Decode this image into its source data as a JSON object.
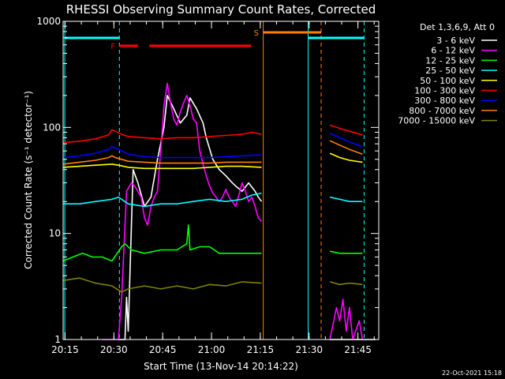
{
  "chart_data": {
    "type": "line",
    "title": "RHESSI Observing Summary Count Rates, Corrected",
    "xlabel": "Start Time (13-Nov-14 20:14:22)",
    "ylabel": "Corrected Count Rate (s⁻¹ detector⁻¹)",
    "x_unit": "minutes since 20:14:22",
    "xlim": [
      0,
      97
    ],
    "ylim": [
      1,
      1000
    ],
    "yscale": "log",
    "x_ticks": [
      {
        "m": 0.6,
        "label": "20:15"
      },
      {
        "m": 15.6,
        "label": "20:30"
      },
      {
        "m": 30.6,
        "label": "20:45"
      },
      {
        "m": 45.6,
        "label": "21:00"
      },
      {
        "m": 60.6,
        "label": "21:15"
      },
      {
        "m": 75.6,
        "label": "21:30"
      },
      {
        "m": 90.6,
        "label": "21:45"
      }
    ],
    "y_ticks": [
      {
        "v": 1,
        "label": "1"
      },
      {
        "v": 10,
        "label": "10"
      },
      {
        "v": 100,
        "label": "100"
      },
      {
        "v": 1000,
        "label": "1000"
      }
    ],
    "legend_header": "Det 1,3,6,9, Att 0",
    "legend_position": "right",
    "footer_date": "22-Oct-2021 15:18",
    "series": [
      {
        "name": "3 - 6 keV",
        "color": "#ffffff",
        "segments": [
          [
            [
              17,
              1.0
            ],
            [
              19,
              1.0
            ],
            [
              19.5,
              2.5
            ],
            [
              20,
              1.2
            ],
            [
              21.5,
              40
            ],
            [
              23,
              30
            ],
            [
              25,
              18
            ],
            [
              27,
              22
            ],
            [
              29,
              50
            ],
            [
              31,
              100
            ],
            [
              32,
              200
            ],
            [
              34,
              150
            ],
            [
              36,
              110
            ],
            [
              38,
              130
            ],
            [
              39,
              190
            ],
            [
              41,
              150
            ],
            [
              43,
              110
            ],
            [
              44,
              80
            ],
            [
              46,
              50
            ],
            [
              48,
              40
            ],
            [
              50,
              35
            ],
            [
              52,
              30
            ],
            [
              53,
              28
            ],
            [
              55,
              25
            ],
            [
              57,
              30
            ],
            [
              59,
              25
            ],
            [
              60,
              22
            ],
            [
              61,
              20
            ]
          ],
          [
            [
              82,
              1.0
            ],
            [
              96,
              1.0
            ]
          ]
        ]
      },
      {
        "name": "6 - 12 keV",
        "color": "#ff00ff",
        "segments": [
          [
            [
              12,
              1.0
            ],
            [
              17,
              1.0
            ],
            [
              18,
              2.5
            ],
            [
              19.5,
              25
            ],
            [
              21,
              30
            ],
            [
              22,
              28
            ],
            [
              24,
              22
            ],
            [
              25,
              14
            ],
            [
              26,
              12
            ],
            [
              27,
              18
            ],
            [
              28,
              22
            ],
            [
              29,
              25
            ],
            [
              30,
              60
            ],
            [
              31,
              160
            ],
            [
              32,
              260
            ],
            [
              33,
              170
            ],
            [
              34,
              120
            ],
            [
              35,
              105
            ],
            [
              36,
              140
            ],
            [
              37,
              170
            ],
            [
              38,
              200
            ],
            [
              39,
              160
            ],
            [
              40,
              120
            ],
            [
              41,
              110
            ],
            [
              42,
              60
            ],
            [
              43,
              45
            ],
            [
              44,
              35
            ],
            [
              45,
              28
            ],
            [
              46,
              24
            ],
            [
              47,
              22
            ],
            [
              48,
              20
            ],
            [
              49,
              22
            ],
            [
              50,
              26
            ],
            [
              51,
              22
            ],
            [
              52,
              20
            ],
            [
              53,
              18
            ],
            [
              54,
              23
            ],
            [
              55,
              30
            ],
            [
              56,
              25
            ],
            [
              57,
              20
            ],
            [
              58,
              22
            ],
            [
              59,
              18
            ],
            [
              60,
              14
            ],
            [
              61,
              13
            ]
          ],
          [
            [
              82,
              1.0
            ],
            [
              84,
              2.0
            ],
            [
              85,
              1.5
            ],
            [
              86,
              2.4
            ],
            [
              87,
              1.2
            ],
            [
              88,
              2.0
            ],
            [
              89,
              1.0
            ],
            [
              91,
              1.5
            ],
            [
              92,
              1.0
            ]
          ]
        ]
      },
      {
        "name": "12 - 25 keV",
        "color": "#00ff00",
        "segments": [
          [
            [
              0,
              5.5
            ],
            [
              3,
              6
            ],
            [
              6,
              6.5
            ],
            [
              9,
              6
            ],
            [
              12,
              6
            ],
            [
              15,
              5.5
            ],
            [
              18,
              7.5
            ],
            [
              19,
              8
            ],
            [
              21,
              7
            ],
            [
              25,
              6.5
            ],
            [
              30,
              7
            ],
            [
              35,
              7
            ],
            [
              38,
              8
            ],
            [
              38.5,
              12
            ],
            [
              39,
              7
            ],
            [
              42,
              7.5
            ],
            [
              45,
              7.5
            ],
            [
              48,
              6.5
            ],
            [
              51,
              6.5
            ],
            [
              54,
              6.5
            ],
            [
              57,
              6.5
            ],
            [
              61,
              6.5
            ]
          ],
          [
            [
              82,
              6.8
            ],
            [
              85,
              6.5
            ],
            [
              88,
              6.5
            ],
            [
              92,
              6.5
            ]
          ]
        ]
      },
      {
        "name": "25 - 50 keV",
        "color": "#00ffff",
        "segments": [
          [
            [
              0,
              19
            ],
            [
              5,
              19
            ],
            [
              10,
              20
            ],
            [
              15,
              21
            ],
            [
              17,
              22
            ],
            [
              20,
              19
            ],
            [
              25,
              18
            ],
            [
              30,
              19
            ],
            [
              35,
              19
            ],
            [
              40,
              20
            ],
            [
              45,
              21
            ],
            [
              50,
              20
            ],
            [
              55,
              21
            ],
            [
              58,
              23
            ],
            [
              61,
              24
            ]
          ],
          [
            [
              82,
              22
            ],
            [
              85,
              21
            ],
            [
              88,
              20
            ],
            [
              92,
              20
            ]
          ]
        ]
      },
      {
        "name": "50 - 100 keV",
        "color": "#ffff00",
        "segments": [
          [
            [
              0,
              42
            ],
            [
              5,
              43
            ],
            [
              10,
              44
            ],
            [
              15,
              45
            ],
            [
              17,
              44
            ],
            [
              20,
              42
            ],
            [
              25,
              41
            ],
            [
              30,
              41
            ],
            [
              35,
              41
            ],
            [
              40,
              41
            ],
            [
              45,
              42
            ],
            [
              50,
              43
            ],
            [
              55,
              43
            ],
            [
              61,
              42
            ]
          ],
          [
            [
              82,
              57
            ],
            [
              85,
              52
            ],
            [
              88,
              49
            ],
            [
              92,
              47
            ]
          ]
        ]
      },
      {
        "name": "100 - 300 keV",
        "color": "#ff0000",
        "segments": [
          [
            [
              0,
              72
            ],
            [
              5,
              74
            ],
            [
              10,
              78
            ],
            [
              14,
              85
            ],
            [
              15,
              95
            ],
            [
              16,
              92
            ],
            [
              18,
              86
            ],
            [
              20,
              82
            ],
            [
              25,
              80
            ],
            [
              30,
              78
            ],
            [
              35,
              80
            ],
            [
              40,
              80
            ],
            [
              45,
              82
            ],
            [
              50,
              84
            ],
            [
              55,
              86
            ],
            [
              58,
              90
            ],
            [
              61,
              86
            ]
          ],
          [
            [
              82,
              105
            ],
            [
              85,
              98
            ],
            [
              88,
              92
            ],
            [
              92,
              85
            ]
          ]
        ]
      },
      {
        "name": "300 - 800 keV",
        "color": "#0000ff",
        "segments": [
          [
            [
              0,
              52
            ],
            [
              5,
              54
            ],
            [
              10,
              57
            ],
            [
              14,
              62
            ],
            [
              15,
              66
            ],
            [
              16,
              64
            ],
            [
              18,
              60
            ],
            [
              20,
              56
            ],
            [
              25,
              53
            ],
            [
              30,
              52
            ],
            [
              35,
              52
            ],
            [
              40,
              52
            ],
            [
              45,
              52
            ],
            [
              50,
              53
            ],
            [
              55,
              54
            ],
            [
              61,
              55
            ]
          ],
          [
            [
              82,
              88
            ],
            [
              85,
              80
            ],
            [
              88,
              73
            ],
            [
              92,
              66
            ]
          ]
        ]
      },
      {
        "name": "800 - 7000 keV",
        "color": "#ff8000",
        "segments": [
          [
            [
              0,
              45
            ],
            [
              5,
              47
            ],
            [
              10,
              49
            ],
            [
              14,
              52
            ],
            [
              15,
              54
            ],
            [
              16,
              52
            ],
            [
              18,
              50
            ],
            [
              20,
              48
            ],
            [
              25,
              47
            ],
            [
              30,
              46
            ],
            [
              35,
              46
            ],
            [
              40,
              46
            ],
            [
              45,
              46
            ],
            [
              50,
              47
            ],
            [
              55,
              47
            ],
            [
              61,
              47
            ]
          ],
          [
            [
              82,
              75
            ],
            [
              85,
              68
            ],
            [
              88,
              62
            ],
            [
              92,
              56
            ]
          ]
        ]
      },
      {
        "name": "7000 - 15000 keV",
        "color": "#808000",
        "segments": [
          [
            [
              0,
              3.6
            ],
            [
              5,
              3.8
            ],
            [
              10,
              3.4
            ],
            [
              15,
              3.2
            ],
            [
              18,
              2.8
            ],
            [
              20,
              3.0
            ],
            [
              25,
              3.2
            ],
            [
              30,
              3.0
            ],
            [
              35,
              3.2
            ],
            [
              40,
              3.0
            ],
            [
              45,
              3.3
            ],
            [
              50,
              3.2
            ],
            [
              55,
              3.5
            ],
            [
              61,
              3.4
            ]
          ],
          [
            [
              82,
              3.5
            ],
            [
              85,
              3.3
            ],
            [
              88,
              3.4
            ],
            [
              92,
              3.3
            ]
          ]
        ]
      }
    ],
    "annotations": {
      "night_bars": [
        {
          "x0": 0.5,
          "x1": 17.3
        },
        {
          "x0": 75.3,
          "x1": 92.5
        }
      ],
      "saa_bar": {
        "x0": 61.5,
        "x1": 79.3,
        "label": "S"
      },
      "flare_bars": {
        "label": "F",
        "segments": [
          [
            17.3,
            23.0
          ],
          [
            26.5,
            57.8
          ]
        ]
      },
      "vlines_solid": [
        {
          "x": 0.5,
          "color": "#00ffff"
        },
        {
          "x": 61.5,
          "color": "#ff8000"
        },
        {
          "x": 75.3,
          "color": "#00ffff"
        }
      ],
      "vlines_dashed": [
        {
          "x": 17.3,
          "color": "#00ffff"
        },
        {
          "x": 79.3,
          "color": "#ff8000"
        },
        {
          "x": 92.5,
          "color": "#00ffff"
        }
      ]
    }
  }
}
